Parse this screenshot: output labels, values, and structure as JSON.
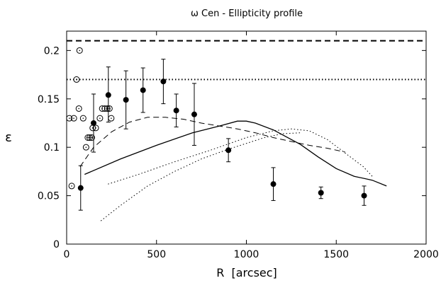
{
  "chart_data": {
    "type": "scatter",
    "title": "ω Cen - Ellipticity profile",
    "xlabel": "R  [arcsec]",
    "ylabel": "ε",
    "xlim": [
      0,
      2000
    ],
    "ylim": [
      0,
      0.22
    ],
    "x_ticks": [
      0,
      500,
      1000,
      1500,
      2000
    ],
    "y_ticks": [
      0,
      0.05,
      0.1,
      0.15,
      0.2
    ],
    "x_tick_labels": [
      "0",
      "500",
      "1000",
      "1500",
      "2000"
    ],
    "y_tick_labels": [
      "0",
      "0.05",
      "0.1",
      "0.15",
      "0.2"
    ],
    "grid": false,
    "legend": "none",
    "series": [
      {
        "marker": "filled-circle",
        "color": "#000000",
        "points": [
          {
            "x": 78,
            "y": 0.058,
            "ymin": 0.035,
            "ymax": 0.081
          },
          {
            "x": 150,
            "y": 0.125,
            "ymin": 0.095,
            "ymax": 0.155
          },
          {
            "x": 232,
            "y": 0.154,
            "ymin": 0.126,
            "ymax": 0.183
          },
          {
            "x": 330,
            "y": 0.149,
            "ymin": 0.119,
            "ymax": 0.179
          },
          {
            "x": 425,
            "y": 0.159,
            "ymin": 0.136,
            "ymax": 0.182
          },
          {
            "x": 538,
            "y": 0.168,
            "ymin": 0.145,
            "ymax": 0.191
          },
          {
            "x": 610,
            "y": 0.138,
            "ymin": 0.121,
            "ymax": 0.155
          },
          {
            "x": 710,
            "y": 0.134,
            "ymin": 0.102,
            "ymax": 0.166
          },
          {
            "x": 900,
            "y": 0.097,
            "ymin": 0.085,
            "ymax": 0.109
          },
          {
            "x": 1150,
            "y": 0.062,
            "ymin": 0.045,
            "ymax": 0.079
          },
          {
            "x": 1415,
            "y": 0.053,
            "ymin": 0.047,
            "ymax": 0.059
          },
          {
            "x": 1655,
            "y": 0.05,
            "ymin": 0.04,
            "ymax": 0.06
          }
        ]
      },
      {
        "marker": "open-circle",
        "color": "#000000",
        "points": [
          {
            "x": 28,
            "y": 0.06
          },
          {
            "x": 15,
            "y": 0.13
          },
          {
            "x": 40,
            "y": 0.13
          },
          {
            "x": 55,
            "y": 0.17
          },
          {
            "x": 72,
            "y": 0.2
          },
          {
            "x": 68,
            "y": 0.14
          },
          {
            "x": 92,
            "y": 0.13
          },
          {
            "x": 108,
            "y": 0.1
          },
          {
            "x": 118,
            "y": 0.11
          },
          {
            "x": 128,
            "y": 0.11
          },
          {
            "x": 140,
            "y": 0.11
          },
          {
            "x": 145,
            "y": 0.12
          },
          {
            "x": 162,
            "y": 0.12
          },
          {
            "x": 185,
            "y": 0.13
          },
          {
            "x": 198,
            "y": 0.14
          },
          {
            "x": 212,
            "y": 0.14
          },
          {
            "x": 226,
            "y": 0.14
          },
          {
            "x": 238,
            "y": 0.14
          },
          {
            "x": 248,
            "y": 0.13
          }
        ]
      }
    ],
    "reference_lines": [
      {
        "style": "dashed",
        "y": 0.21
      },
      {
        "style": "dotted",
        "y": 0.17
      }
    ],
    "curves": [
      {
        "style": "solid",
        "points": [
          [
            100,
            0.072
          ],
          [
            300,
            0.088
          ],
          [
            500,
            0.102
          ],
          [
            700,
            0.115
          ],
          [
            850,
            0.122
          ],
          [
            950,
            0.127
          ],
          [
            1000,
            0.127
          ],
          [
            1050,
            0.125
          ],
          [
            1150,
            0.118
          ],
          [
            1300,
            0.103
          ],
          [
            1400,
            0.09
          ],
          [
            1500,
            0.078
          ],
          [
            1600,
            0.07
          ],
          [
            1700,
            0.066
          ],
          [
            1780,
            0.06
          ]
        ]
      },
      {
        "style": "dashed",
        "points": [
          [
            75,
            0.08
          ],
          [
            150,
            0.1
          ],
          [
            250,
            0.116
          ],
          [
            350,
            0.126
          ],
          [
            450,
            0.131
          ],
          [
            550,
            0.131
          ],
          [
            650,
            0.129
          ],
          [
            750,
            0.125
          ],
          [
            850,
            0.122
          ],
          [
            950,
            0.119
          ],
          [
            1050,
            0.115
          ],
          [
            1150,
            0.11
          ],
          [
            1250,
            0.106
          ],
          [
            1350,
            0.102
          ],
          [
            1450,
            0.099
          ],
          [
            1550,
            0.095
          ]
        ]
      },
      {
        "style": "dotted",
        "points": [
          [
            230,
            0.062
          ],
          [
            400,
            0.072
          ],
          [
            600,
            0.085
          ],
          [
            800,
            0.097
          ],
          [
            1000,
            0.11
          ],
          [
            1150,
            0.117
          ],
          [
            1250,
            0.119
          ],
          [
            1350,
            0.117
          ],
          [
            1450,
            0.108
          ],
          [
            1550,
            0.094
          ],
          [
            1650,
            0.08
          ],
          [
            1700,
            0.07
          ]
        ]
      },
      {
        "style": "dotted",
        "points": [
          [
            190,
            0.024
          ],
          [
            300,
            0.04
          ],
          [
            450,
            0.06
          ],
          [
            600,
            0.075
          ],
          [
            750,
            0.088
          ],
          [
            900,
            0.098
          ],
          [
            1000,
            0.104
          ],
          [
            1100,
            0.11
          ],
          [
            1200,
            0.114
          ],
          [
            1300,
            0.115
          ]
        ]
      }
    ]
  }
}
